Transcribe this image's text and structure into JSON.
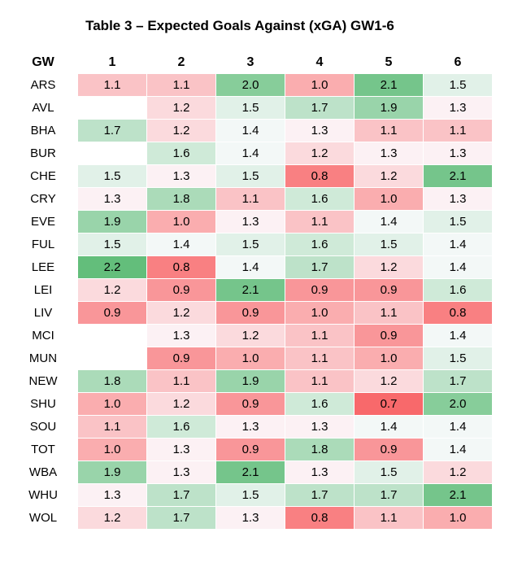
{
  "title": "Table 3 – Expected Goals Against (xGA) GW1-6",
  "chart_data": {
    "type": "heatmap",
    "title": "Table 3 – Expected Goals Against (xGA) GW1-6",
    "row_header": "GW",
    "columns": [
      "1",
      "2",
      "3",
      "4",
      "5",
      "6"
    ],
    "rows": [
      "ARS",
      "AVL",
      "BHA",
      "BUR",
      "CHE",
      "CRY",
      "EVE",
      "FUL",
      "LEE",
      "LEI",
      "LIV",
      "MCI",
      "MUN",
      "NEW",
      "SHU",
      "SOU",
      "TOT",
      "WBA",
      "WHU",
      "WOL"
    ],
    "values": [
      [
        1.1,
        1.1,
        2.0,
        1.0,
        2.1,
        1.5
      ],
      [
        null,
        1.2,
        1.5,
        1.7,
        1.9,
        1.3
      ],
      [
        1.7,
        1.2,
        1.4,
        1.3,
        1.1,
        1.1
      ],
      [
        null,
        1.6,
        1.4,
        1.2,
        1.3,
        1.3
      ],
      [
        1.5,
        1.3,
        1.5,
        0.8,
        1.2,
        2.1
      ],
      [
        1.3,
        1.8,
        1.1,
        1.6,
        1.0,
        1.3
      ],
      [
        1.9,
        1.0,
        1.3,
        1.1,
        1.4,
        1.5
      ],
      [
        1.5,
        1.4,
        1.5,
        1.6,
        1.5,
        1.4
      ],
      [
        2.2,
        0.8,
        1.4,
        1.7,
        1.2,
        1.4
      ],
      [
        1.2,
        0.9,
        2.1,
        0.9,
        0.9,
        1.6
      ],
      [
        0.9,
        1.2,
        0.9,
        1.0,
        1.1,
        0.8
      ],
      [
        null,
        1.3,
        1.2,
        1.1,
        0.9,
        1.4
      ],
      [
        null,
        0.9,
        1.0,
        1.1,
        1.0,
        1.5
      ],
      [
        1.8,
        1.1,
        1.9,
        1.1,
        1.2,
        1.7
      ],
      [
        1.0,
        1.2,
        0.9,
        1.6,
        0.7,
        2.0
      ],
      [
        1.1,
        1.6,
        1.3,
        1.3,
        1.4,
        1.4
      ],
      [
        1.0,
        1.3,
        0.9,
        1.8,
        0.9,
        1.4
      ],
      [
        1.9,
        1.3,
        2.1,
        1.3,
        1.5,
        1.2
      ],
      [
        1.3,
        1.7,
        1.5,
        1.7,
        1.7,
        2.1
      ],
      [
        1.2,
        1.7,
        1.3,
        0.8,
        1.1,
        1.0
      ]
    ],
    "color_scale": {
      "low": "#f8696b",
      "mid": "#fcfcff",
      "high": "#63be7b",
      "min": 0.7,
      "mid_value": 1.35,
      "max": 2.2
    }
  }
}
